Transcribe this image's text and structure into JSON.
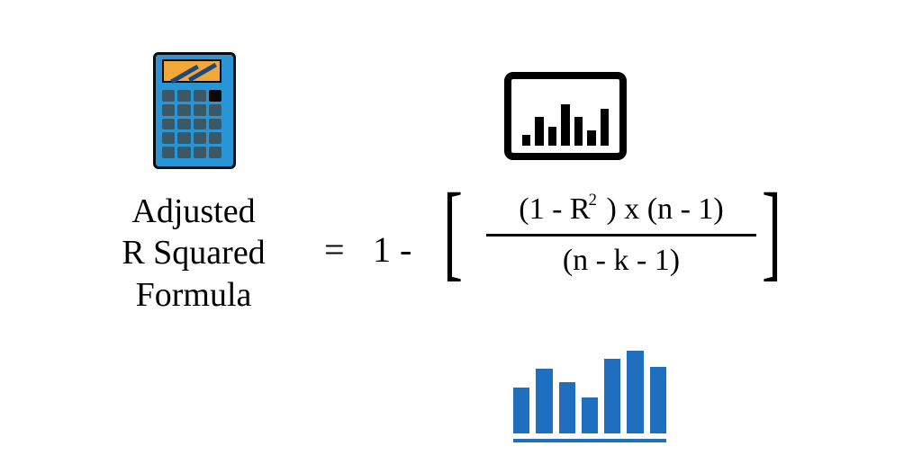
{
  "colors": {
    "background": "#ffffff",
    "text": "#000000",
    "calculator_body": "#2a95d6",
    "calculator_border": "#0a0a0a",
    "calculator_screen": "#f2a838",
    "calculator_screen_stripe": "#1f497d",
    "calculator_key": "#3a5866",
    "calculator_key_dark": "#0a0a0a",
    "monitor_border": "#000000",
    "monitor_bar": "#000000",
    "bluechart_bar": "#1f6fc1"
  },
  "title": {
    "line1": "Adjusted",
    "line2": "R Squared",
    "line3": "Formula",
    "fontsize": 38
  },
  "formula": {
    "equals": "=",
    "prefix": "1 -",
    "left_bracket": "[",
    "right_bracket": "]",
    "numerator_html": "(1 - R<sup class='sq'>2</sup> ) x (n - 1)",
    "denominator": "(n - k - 1)",
    "font_size": 34
  },
  "monitor_bars": {
    "type": "bar",
    "heights_pct": [
      20,
      55,
      36,
      80,
      55,
      30,
      70
    ],
    "color": "#000000"
  },
  "bluechart": {
    "type": "bar",
    "heights_pct": [
      55,
      78,
      62,
      44,
      90,
      100,
      80
    ],
    "color": "#1f6fc1",
    "baseline": true
  }
}
